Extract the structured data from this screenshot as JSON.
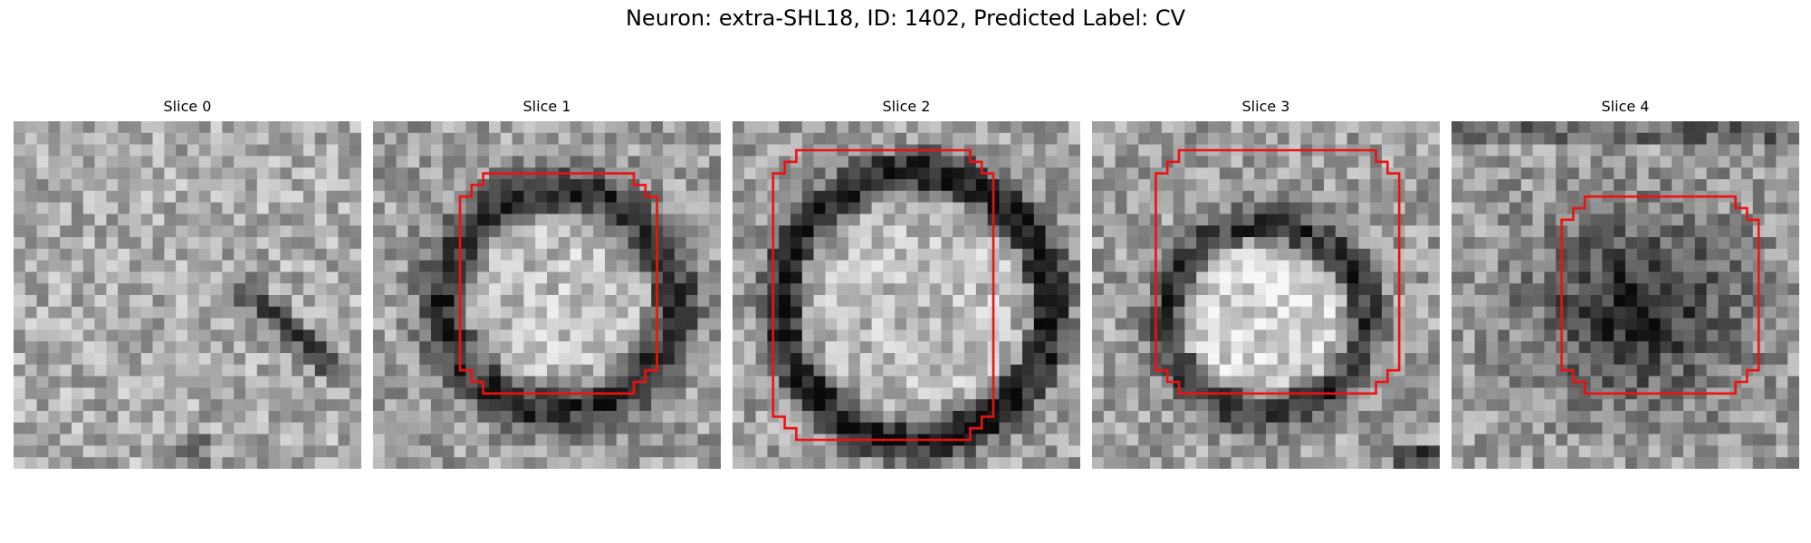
{
  "figure": {
    "title": "Neuron: extra-SHL18, ID: 1402, Predicted Label: CV"
  },
  "colors": {
    "contour": "#ee1111",
    "background": "#ffffff"
  },
  "image_kind": "grayscale microscopy slices with red boundary overlay",
  "slices": [
    {
      "title": "Slice 0",
      "contour": false,
      "feature": "diagonal-dark-streak"
    },
    {
      "title": "Slice 1",
      "contour": true,
      "feature": "dark-ring-light-core"
    },
    {
      "title": "Slice 2",
      "contour": true,
      "feature": "large-dark-ring-light-core"
    },
    {
      "title": "Slice 3",
      "contour": true,
      "feature": "ring-bright-core"
    },
    {
      "title": "Slice 4",
      "contour": true,
      "feature": "dark-blob"
    }
  ]
}
